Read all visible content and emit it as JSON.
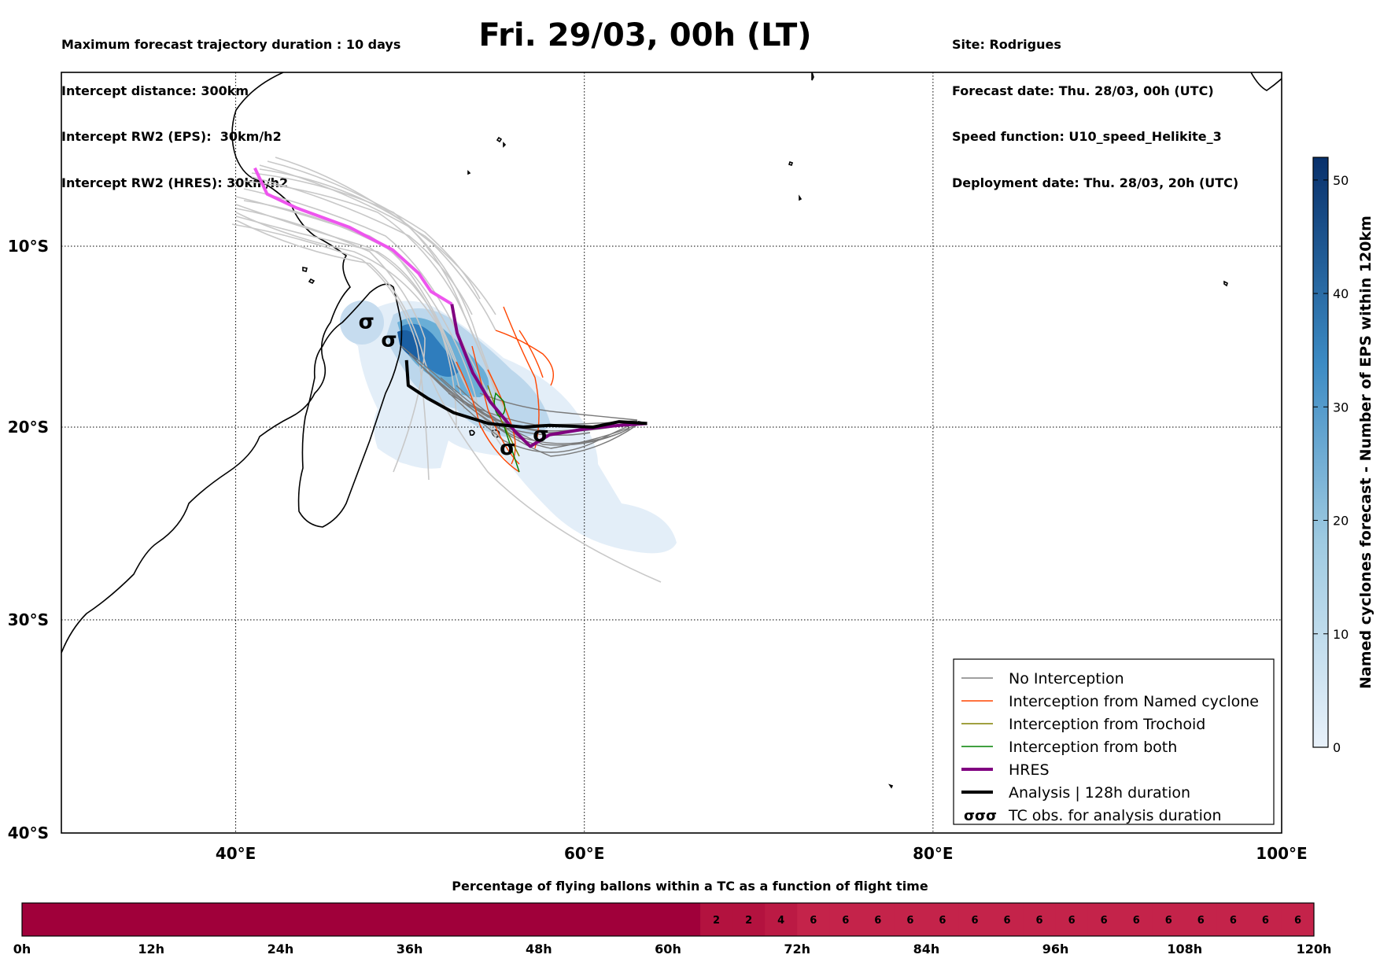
{
  "header": {
    "left_lines": [
      "Maximum forecast trajectory duration : 10 days",
      "Intercept distance: 300km",
      "Intercept RW2 (EPS):  30km/h2",
      "Intercept RW2 (HRES): 30km/h2"
    ],
    "title": "Fri. 29/03, 00h (LT)",
    "right_lines": [
      "Site: Rodrigues",
      "Forecast date: Thu. 28/03, 00h (UTC)",
      "Speed function: U10_speed_Helikite_3",
      "Deployment date: Thu. 28/03, 20h (UTC)"
    ]
  },
  "map": {
    "lon_range": [
      30,
      100
    ],
    "lat_range": [
      -40,
      0
    ],
    "lon_ticks": [
      {
        "value": 40,
        "label": "40°E"
      },
      {
        "value": 60,
        "label": "60°E"
      },
      {
        "value": 80,
        "label": "80°E"
      },
      {
        "value": 100,
        "label": "100°E"
      }
    ],
    "lat_ticks": [
      {
        "value": -10,
        "label": "10°S"
      },
      {
        "value": -20,
        "label": "20°S"
      },
      {
        "value": -30,
        "label": "30°S"
      },
      {
        "value": -40,
        "label": "40°S"
      }
    ],
    "colors": {
      "no_interception": "#808080",
      "named_cyclone": "#ff4500",
      "trochoid": "#808000",
      "both": "#008000",
      "hres": "#800080",
      "hres_early": "#ee55ee",
      "analysis": "#000000",
      "eps_members": "#c8c8c8"
    },
    "hres_track": [
      [
        41.1,
        -5.5
      ],
      [
        41.8,
        -7.0
      ],
      [
        43.5,
        -7.8
      ],
      [
        46.5,
        -8.9
      ],
      [
        49.0,
        -10.2
      ],
      [
        50.5,
        -11.5
      ],
      [
        51.2,
        -12.5
      ],
      [
        52.4,
        -13.2
      ],
      [
        52.7,
        -14.8
      ],
      [
        53.6,
        -17.0
      ],
      [
        54.6,
        -18.6
      ],
      [
        56.0,
        -20.2
      ],
      [
        56.9,
        -21.0
      ],
      [
        58.0,
        -20.4
      ],
      [
        60.0,
        -20.1
      ],
      [
        62.0,
        -19.9
      ],
      [
        63.6,
        -19.8
      ]
    ],
    "analysis_track": [
      [
        49.8,
        -16.3
      ],
      [
        49.9,
        -17.7
      ],
      [
        51.0,
        -18.4
      ],
      [
        52.5,
        -19.2
      ],
      [
        54.5,
        -19.8
      ],
      [
        56.5,
        -20.0
      ],
      [
        58.0,
        -19.9
      ],
      [
        60.5,
        -20.0
      ],
      [
        62.0,
        -19.7
      ],
      [
        63.6,
        -19.8
      ]
    ],
    "tc_obs": [
      [
        47.5,
        -14.2
      ],
      [
        48.8,
        -15.2
      ],
      [
        55.6,
        -21.1
      ],
      [
        57.5,
        -20.4
      ]
    ]
  },
  "legend": {
    "items": [
      {
        "label": "No Interception",
        "key": "no_interception",
        "width": 1
      },
      {
        "label": "Interception from Named cyclone",
        "key": "named_cyclone",
        "width": 1
      },
      {
        "label": "Interception from Trochoid",
        "key": "trochoid",
        "width": 1
      },
      {
        "label": "Interception from both",
        "key": "both",
        "width": 1
      },
      {
        "label": "HRES",
        "key": "hres",
        "width": 4
      },
      {
        "label": "Analysis | 128h duration",
        "key": "analysis",
        "width": 4
      },
      {
        "label": "TC obs. for analysis duration",
        "key": "obs",
        "width": 0
      }
    ],
    "obs_symbol": "σσσ"
  },
  "colorbar": {
    "label": "Named cyclones forecast - Number of EPS within 120km",
    "range": [
      0,
      52
    ],
    "ticks": [
      0,
      10,
      20,
      30,
      40,
      50
    ]
  },
  "strip": {
    "title": "Percentage of flying ballons within a TC as a function of flight time",
    "values": [
      0,
      0,
      0,
      0,
      0,
      0,
      0,
      0,
      0,
      0,
      0,
      0,
      0,
      0,
      0,
      0,
      0,
      0,
      0,
      0,
      0,
      2,
      2,
      4,
      6,
      6,
      6,
      6,
      6,
      6,
      6,
      6,
      6,
      6,
      6,
      6,
      6,
      6,
      6,
      6
    ],
    "ticks": [
      "0h",
      "12h",
      "24h",
      "36h",
      "48h",
      "60h",
      "72h",
      "84h",
      "96h",
      "108h",
      "120h"
    ]
  }
}
